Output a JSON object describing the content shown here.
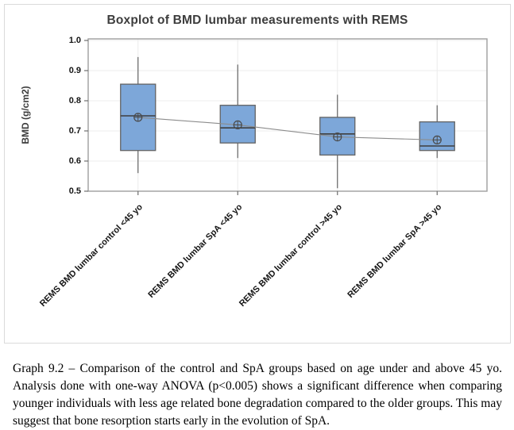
{
  "figure": {
    "title": "Boxplot of BMD lumbar measurements with REMS",
    "ylabel": "BMD (g/cm2)"
  },
  "chart_data": {
    "type": "boxplot",
    "title": "Boxplot of BMD lumbar measurements with REMS",
    "xlabel": "",
    "ylabel": "BMD (g/cm2)",
    "ylim": [
      0.5,
      1.0
    ],
    "ytick_labels": [
      "1.0",
      "0.9",
      "0.8",
      "0.7",
      "0.6",
      "0.5"
    ],
    "ytick_values": [
      1.0,
      0.9,
      0.8,
      0.7,
      0.6,
      0.5
    ],
    "grid": true,
    "legend": "none",
    "mean_connecting_line": true,
    "categories": [
      "REMS BMD lumbar control <45 yo",
      "REMS BMD lumbar SpA <45 yo",
      "REMS BMD lumbar control >45 yo",
      "REMS BMD lumbar SpA >45 yo"
    ],
    "series": [
      {
        "name": "REMS BMD lumbar control <45 yo",
        "whisker_low": 0.56,
        "q1": 0.635,
        "median": 0.75,
        "q3": 0.855,
        "whisker_high": 0.945,
        "mean": 0.745
      },
      {
        "name": "REMS BMD lumbar SpA <45 yo",
        "whisker_low": 0.61,
        "q1": 0.66,
        "median": 0.71,
        "q3": 0.785,
        "whisker_high": 0.92,
        "mean": 0.72
      },
      {
        "name": "REMS BMD lumbar control >45 yo",
        "whisker_low": 0.51,
        "q1": 0.62,
        "median": 0.69,
        "q3": 0.745,
        "whisker_high": 0.82,
        "mean": 0.68
      },
      {
        "name": "REMS BMD lumbar SpA >45 yo",
        "whisker_low": 0.61,
        "q1": 0.635,
        "median": 0.65,
        "q3": 0.73,
        "whisker_high": 0.785,
        "mean": 0.67
      }
    ],
    "colors": {
      "box_fill": "#7da7d9",
      "box_stroke": "#636363",
      "median_line": "#3f3f3f",
      "whisker": "#636363",
      "mean_marker": "#4a4a4a",
      "trend_line": "#8c8c8c",
      "gridline": "#ececec",
      "frame": "#9e9e9e",
      "tick": "#6e6e6e"
    }
  },
  "caption": {
    "text": "Graph 9.2 – Comparison of the control and SpA groups based on age under and above 45 yo. Analysis done with one-way ANOVA (p<0.005) shows a significant difference when comparing younger individuals with less age related bone degradation compared to the older groups. This may suggest that bone resorption starts early in the evolution of SpA."
  }
}
